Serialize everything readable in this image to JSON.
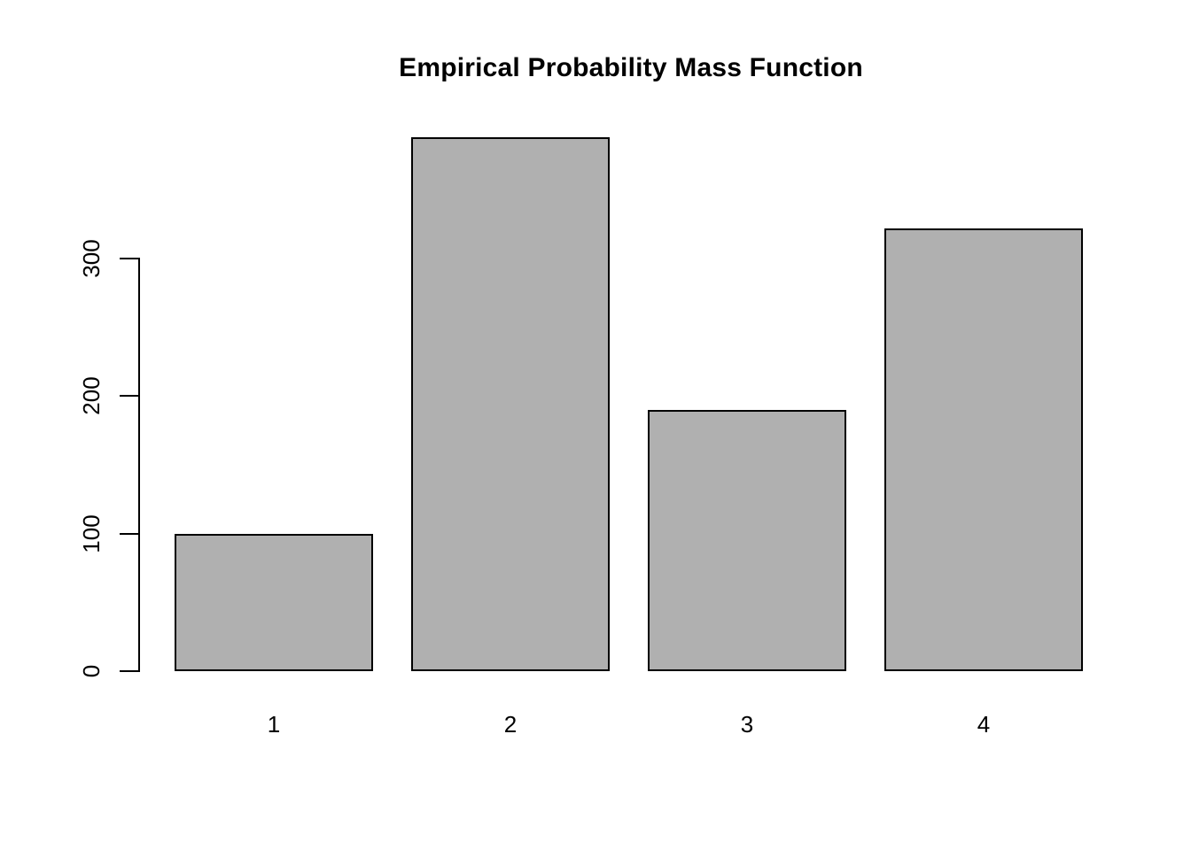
{
  "chart_data": {
    "type": "bar",
    "title": "Empirical Probability Mass Function",
    "categories": [
      "1",
      "2",
      "3",
      "4"
    ],
    "values": [
      100,
      388,
      190,
      322
    ],
    "xlabel": "",
    "ylabel": "",
    "yticks": [
      0,
      100,
      200,
      300
    ],
    "ytick_labels": [
      "0",
      "100",
      "200",
      "300"
    ],
    "ylim": [
      0,
      398
    ],
    "grid": false,
    "legend": null,
    "bar_fill": "#b0b0b0",
    "bar_border": "#000000",
    "background": "#ffffff",
    "axis_color": "#000000"
  }
}
